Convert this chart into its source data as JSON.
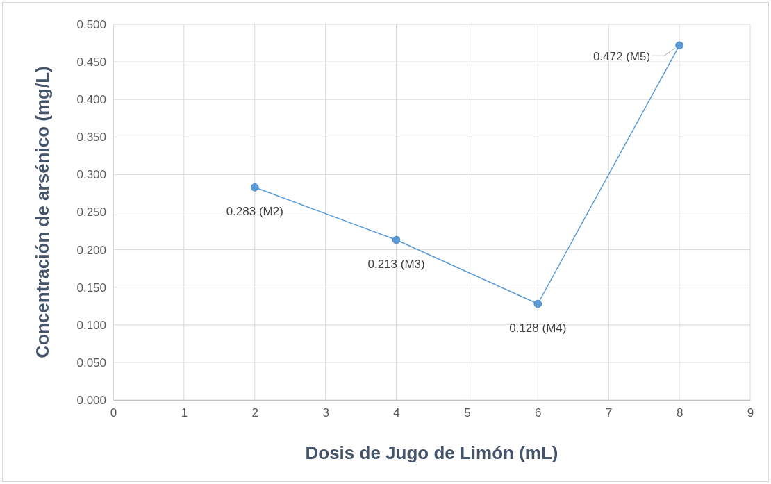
{
  "chart_data": {
    "type": "line",
    "xlabel": "Dosis de Jugo de Limón (mL)",
    "ylabel": "Concentración de arsénico (mg/L)",
    "x": [
      2,
      4,
      6,
      8
    ],
    "series": [
      {
        "color": "#5b9bd5",
        "values": [
          0.283,
          0.213,
          0.128,
          0.472
        ],
        "value_labels": [
          "0.283 (M2)",
          "0.213 (M3)",
          "0.128 (M4)",
          "0.472 (M5)"
        ]
      }
    ],
    "xlim": [
      0,
      9
    ],
    "xticks": [
      0,
      1,
      2,
      3,
      4,
      5,
      6,
      7,
      8,
      9
    ],
    "ylim": [
      0,
      0.5
    ],
    "yticks": [
      {
        "value": 0,
        "label": "0.000"
      },
      {
        "value": 0.05,
        "label": "0.050"
      },
      {
        "value": 0.1,
        "label": "0.100"
      },
      {
        "value": 0.15,
        "label": "0.150"
      },
      {
        "value": 0.2,
        "label": "0.200"
      },
      {
        "value": 0.25,
        "label": "0.250"
      },
      {
        "value": 0.3,
        "label": "0.300"
      },
      {
        "value": 0.35,
        "label": "0.350"
      },
      {
        "value": 0.4,
        "label": "0.400"
      },
      {
        "value": 0.45,
        "label": "0.450"
      },
      {
        "value": 0.5,
        "label": "0.500"
      }
    ],
    "grid": true,
    "marker": "circle",
    "line_style": "solid"
  }
}
